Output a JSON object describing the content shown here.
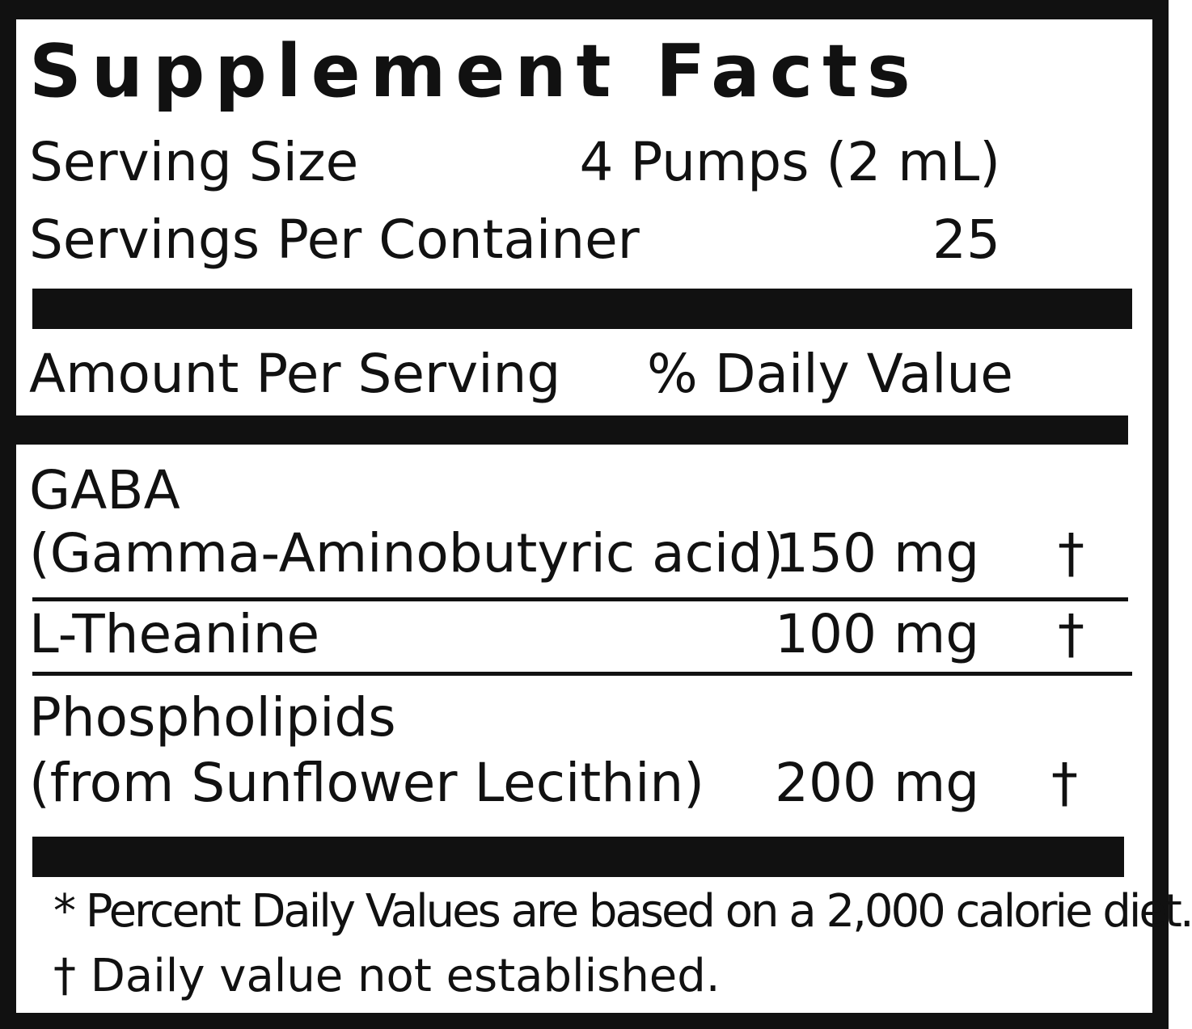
{
  "title": "Supplement Facts",
  "serving": {
    "size_label": "Serving Size",
    "size_value": "4 Pumps (2 mL)",
    "per_container_label": "Servings Per Container",
    "per_container_value": "25"
  },
  "header": {
    "amount_label": "Amount Per Serving",
    "dv_label": "% Daily Value"
  },
  "ingredients": [
    {
      "name_line1": "GABA",
      "name_line2": "(Gamma-Aminobutyric acid)",
      "amount": "150 mg",
      "dv": "†"
    },
    {
      "name_line1": "L-Theanine",
      "amount": "100 mg",
      "dv": "†"
    },
    {
      "name_line1": "Phospholipids",
      "name_line2": "(from Sunflower Lecithin)",
      "amount": "200 mg",
      "dv": "†"
    }
  ],
  "footnotes": {
    "percent_note": "* Percent Daily Values are based on a 2,000 calorie diet.",
    "dagger_note": "† Daily value not established."
  },
  "colors": {
    "ink": "#111111",
    "background": "#ffffff"
  }
}
